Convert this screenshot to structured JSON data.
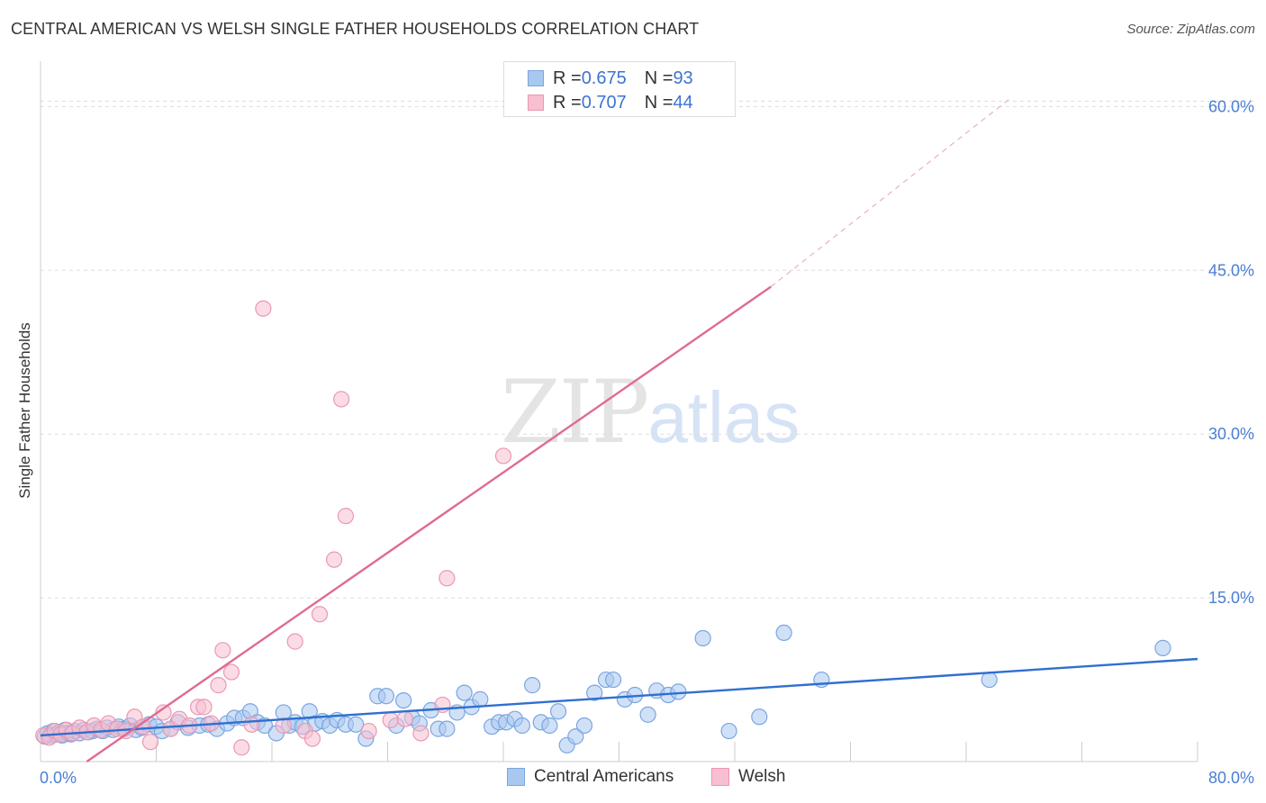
{
  "title": "CENTRAL AMERICAN VS WELSH SINGLE FATHER HOUSEHOLDS CORRELATION CHART",
  "source": "Source: ZipAtlas.com",
  "watermark": {
    "zip": "ZIP",
    "atlas": "atlas"
  },
  "colors": {
    "blue_fill": "#a9c8f0",
    "blue_stroke": "#7aa6e0",
    "blue_line": "#2f6fd0",
    "pink_fill": "#f7bfd0",
    "pink_stroke": "#eb97b3",
    "pink_line": "#e06a93",
    "grid": "#dddddd",
    "tick_text": "#4a7fd4"
  },
  "legend": {
    "rows": [
      {
        "r_label": "R = ",
        "r_value": "0.675",
        "n_label": "N = ",
        "n_value": "93",
        "color": "#a9c8f0",
        "stroke": "#7aa6e0"
      },
      {
        "r_label": "R = ",
        "r_value": "0.707",
        "n_label": "N = ",
        "n_value": "44",
        "color": "#f7bfd0",
        "stroke": "#eb97b3"
      }
    ]
  },
  "bottom_legend": [
    {
      "label": "Central Americans",
      "color": "#a9c8f0",
      "stroke": "#7aa6e0"
    },
    {
      "label": "Welsh",
      "color": "#f7bfd0",
      "stroke": "#eb97b3"
    }
  ],
  "chart_data": {
    "type": "scatter",
    "title": "CENTRAL AMERICAN VS WELSH SINGLE FATHER HOUSEHOLDS CORRELATION CHART",
    "xlabel": "",
    "ylabel": "Single Father Households",
    "xlim": [
      0,
      80
    ],
    "ylim": [
      0,
      63
    ],
    "x_tick_labels": [
      {
        "value": 0,
        "label": "0.0%"
      },
      {
        "value": 80,
        "label": "80.0%"
      }
    ],
    "y_tick_labels": [
      {
        "value": 15,
        "label": "15.0%"
      },
      {
        "value": 30,
        "label": "30.0%"
      },
      {
        "value": 45,
        "label": "45.0%"
      },
      {
        "value": 60,
        "label": "60.0%"
      }
    ],
    "x_grid": [
      0,
      8,
      16,
      24,
      32,
      40,
      48,
      56,
      64,
      72,
      80
    ],
    "series": [
      {
        "name": "Central Americans",
        "points": [
          [
            0.3,
            2.3
          ],
          [
            0.5,
            2.6
          ],
          [
            0.7,
            2.4
          ],
          [
            0.9,
            2.8
          ],
          [
            1.1,
            2.5
          ],
          [
            1.3,
            2.7
          ],
          [
            1.5,
            2.4
          ],
          [
            1.7,
            2.9
          ],
          [
            1.9,
            2.6
          ],
          [
            2.1,
            2.5
          ],
          [
            2.4,
            2.8
          ],
          [
            2.7,
            2.6
          ],
          [
            3.0,
            2.9
          ],
          [
            3.3,
            2.7
          ],
          [
            3.6,
            2.8
          ],
          [
            3.9,
            3.0
          ],
          [
            4.3,
            2.8
          ],
          [
            4.6,
            3.1
          ],
          [
            5.0,
            2.9
          ],
          [
            5.4,
            3.2
          ],
          [
            5.8,
            3.0
          ],
          [
            6.2,
            3.3
          ],
          [
            6.6,
            2.9
          ],
          [
            7.0,
            3.1
          ],
          [
            7.5,
            3.4
          ],
          [
            8.0,
            3.2
          ],
          [
            8.4,
            2.8
          ],
          [
            9.0,
            3.0
          ],
          [
            9.5,
            3.6
          ],
          [
            10.2,
            3.1
          ],
          [
            11.0,
            3.3
          ],
          [
            11.6,
            3.4
          ],
          [
            12.2,
            3.0
          ],
          [
            12.9,
            3.5
          ],
          [
            13.4,
            4.0
          ],
          [
            14.0,
            4.0
          ],
          [
            14.5,
            4.6
          ],
          [
            15.0,
            3.6
          ],
          [
            15.5,
            3.3
          ],
          [
            16.3,
            2.6
          ],
          [
            16.8,
            4.5
          ],
          [
            17.2,
            3.3
          ],
          [
            17.6,
            3.6
          ],
          [
            18.1,
            3.2
          ],
          [
            18.6,
            4.6
          ],
          [
            19.0,
            3.5
          ],
          [
            19.5,
            3.7
          ],
          [
            20.0,
            3.3
          ],
          [
            20.5,
            3.8
          ],
          [
            21.1,
            3.4
          ],
          [
            21.8,
            3.4
          ],
          [
            22.5,
            2.1
          ],
          [
            23.3,
            6.0
          ],
          [
            23.9,
            6.0
          ],
          [
            24.6,
            3.3
          ],
          [
            25.1,
            5.6
          ],
          [
            25.7,
            4.0
          ],
          [
            26.2,
            3.5
          ],
          [
            27.0,
            4.7
          ],
          [
            27.5,
            3.0
          ],
          [
            28.1,
            3.0
          ],
          [
            28.8,
            4.5
          ],
          [
            29.3,
            6.3
          ],
          [
            29.8,
            5.0
          ],
          [
            30.4,
            5.7
          ],
          [
            31.2,
            3.2
          ],
          [
            31.7,
            3.6
          ],
          [
            32.2,
            3.6
          ],
          [
            32.8,
            3.9
          ],
          [
            33.3,
            3.3
          ],
          [
            34.0,
            7.0
          ],
          [
            34.6,
            3.6
          ],
          [
            35.2,
            3.3
          ],
          [
            35.8,
            4.6
          ],
          [
            36.4,
            1.5
          ],
          [
            37.0,
            2.3
          ],
          [
            37.6,
            3.3
          ],
          [
            38.3,
            6.3
          ],
          [
            39.1,
            7.5
          ],
          [
            39.6,
            7.5
          ],
          [
            40.4,
            5.7
          ],
          [
            41.1,
            6.1
          ],
          [
            42.0,
            4.3
          ],
          [
            42.6,
            6.5
          ],
          [
            43.4,
            6.1
          ],
          [
            44.1,
            6.4
          ],
          [
            45.8,
            11.3
          ],
          [
            47.6,
            2.8
          ],
          [
            49.7,
            4.1
          ],
          [
            51.4,
            11.8
          ],
          [
            54.0,
            7.5
          ],
          [
            65.6,
            7.5
          ],
          [
            77.6,
            10.4
          ]
        ]
      },
      {
        "name": "Welsh",
        "points": [
          [
            0.2,
            2.4
          ],
          [
            0.6,
            2.2
          ],
          [
            1.0,
            2.8
          ],
          [
            1.4,
            2.5
          ],
          [
            1.8,
            2.9
          ],
          [
            2.2,
            2.6
          ],
          [
            2.7,
            3.1
          ],
          [
            3.2,
            2.7
          ],
          [
            3.7,
            3.3
          ],
          [
            4.2,
            2.9
          ],
          [
            4.7,
            3.5
          ],
          [
            5.3,
            3.0
          ],
          [
            5.9,
            2.8
          ],
          [
            6.5,
            4.1
          ],
          [
            7.1,
            3.2
          ],
          [
            7.6,
            1.8
          ],
          [
            8.5,
            4.5
          ],
          [
            9.0,
            3.0
          ],
          [
            9.6,
            3.9
          ],
          [
            10.3,
            3.3
          ],
          [
            10.9,
            5.0
          ],
          [
            11.3,
            5.0
          ],
          [
            11.8,
            3.5
          ],
          [
            12.3,
            7.0
          ],
          [
            12.6,
            10.2
          ],
          [
            13.2,
            8.2
          ],
          [
            13.9,
            1.3
          ],
          [
            14.6,
            3.4
          ],
          [
            15.4,
            41.5
          ],
          [
            16.8,
            3.3
          ],
          [
            17.6,
            11.0
          ],
          [
            18.3,
            2.8
          ],
          [
            18.8,
            2.1
          ],
          [
            19.3,
            13.5
          ],
          [
            20.3,
            18.5
          ],
          [
            20.8,
            33.2
          ],
          [
            21.1,
            22.5
          ],
          [
            22.7,
            2.8
          ],
          [
            24.2,
            3.8
          ],
          [
            25.2,
            3.9
          ],
          [
            26.3,
            2.6
          ],
          [
            27.8,
            5.2
          ],
          [
            28.1,
            16.8
          ],
          [
            32.0,
            28.0
          ]
        ]
      }
    ],
    "trend_lines": [
      {
        "series": "Central Americans",
        "x": [
          0,
          80
        ],
        "y": [
          2.4,
          9.4
        ]
      },
      {
        "series": "Welsh",
        "x": [
          3.2,
          50.5
        ],
        "y": [
          0,
          43.5
        ],
        "extension_x": [
          50.5,
          67
        ],
        "extension_y": [
          43.5,
          60.7
        ]
      }
    ]
  }
}
